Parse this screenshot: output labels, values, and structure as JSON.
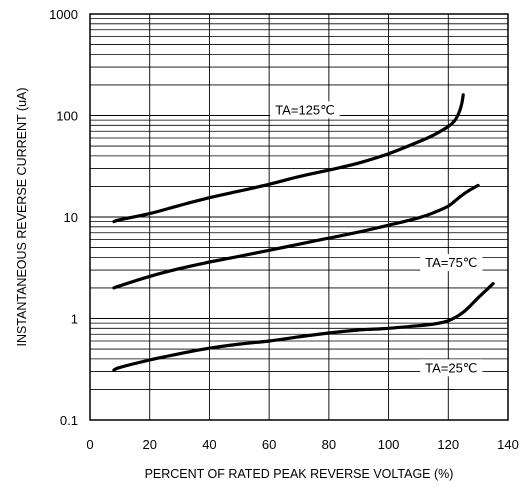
{
  "chart_data": {
    "type": "line",
    "xlabel": "PERCENT OF RATED PEAK REVERSE VOLTAGE (%)",
    "ylabel": "INSTANTANEOUS REVERSE CURRENT (uA)",
    "xlim": [
      0,
      140
    ],
    "ylim": [
      0.1,
      1000
    ],
    "y_scale": "log",
    "grid": true,
    "x_ticks": [
      "0",
      "20",
      "40",
      "60",
      "80",
      "100",
      "120",
      "140"
    ],
    "y_ticks": [
      "0.1",
      "1",
      "10",
      "100",
      "1000"
    ],
    "line_color": "#000000",
    "series": [
      {
        "name": "TA=125℃",
        "points": [
          [
            8,
            9
          ],
          [
            10,
            9.4
          ],
          [
            20,
            10.8
          ],
          [
            30,
            13
          ],
          [
            40,
            15.5
          ],
          [
            50,
            18
          ],
          [
            60,
            21
          ],
          [
            70,
            25
          ],
          [
            80,
            29
          ],
          [
            90,
            34
          ],
          [
            100,
            42
          ],
          [
            110,
            55
          ],
          [
            115,
            64
          ],
          [
            120,
            78
          ],
          [
            122,
            88
          ],
          [
            123.5,
            105
          ],
          [
            124.5,
            130
          ],
          [
            125,
            160
          ]
        ]
      },
      {
        "name": "TA=75℃",
        "points": [
          [
            8,
            2
          ],
          [
            10,
            2.1
          ],
          [
            20,
            2.6
          ],
          [
            30,
            3.1
          ],
          [
            40,
            3.6
          ],
          [
            50,
            4.1
          ],
          [
            60,
            4.7
          ],
          [
            70,
            5.4
          ],
          [
            80,
            6.2
          ],
          [
            90,
            7.1
          ],
          [
            100,
            8.3
          ],
          [
            110,
            9.8
          ],
          [
            115,
            11
          ],
          [
            120,
            12.8
          ],
          [
            123,
            15
          ],
          [
            126,
            17.5
          ],
          [
            130,
            20.5
          ]
        ]
      },
      {
        "name": "TA=25℃",
        "points": [
          [
            8,
            0.31
          ],
          [
            10,
            0.33
          ],
          [
            20,
            0.39
          ],
          [
            30,
            0.45
          ],
          [
            40,
            0.51
          ],
          [
            50,
            0.56
          ],
          [
            60,
            0.6
          ],
          [
            70,
            0.66
          ],
          [
            80,
            0.72
          ],
          [
            90,
            0.77
          ],
          [
            100,
            0.8
          ],
          [
            110,
            0.85
          ],
          [
            115,
            0.88
          ],
          [
            120,
            0.95
          ],
          [
            125,
            1.15
          ],
          [
            130,
            1.6
          ],
          [
            135,
            2.2
          ]
        ]
      }
    ],
    "labels": [
      {
        "text": "TA=125℃",
        "series": 0,
        "x": 72,
        "y": 115
      },
      {
        "text": "TA=75℃",
        "series": 1,
        "x": 121,
        "y": 3.6
      },
      {
        "text": "TA=25℃",
        "series": 2,
        "x": 121,
        "y": 0.33
      }
    ]
  }
}
